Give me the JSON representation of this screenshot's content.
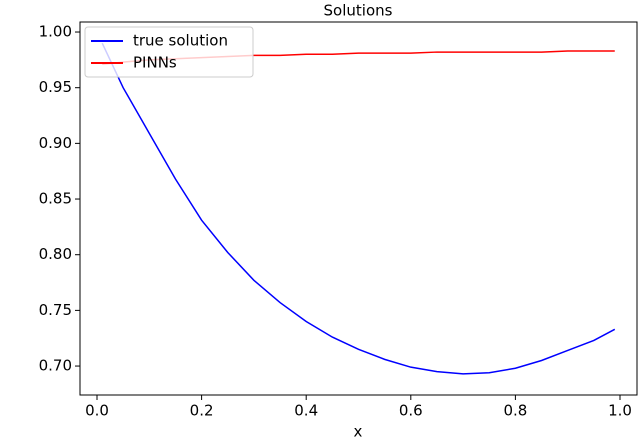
{
  "chart_data": {
    "type": "line",
    "title": "Solutions",
    "x_label": "x",
    "x": [
      0.01,
      0.05,
      0.1,
      0.15,
      0.2,
      0.25,
      0.3,
      0.35,
      0.4,
      0.45,
      0.5,
      0.55,
      0.6,
      0.65,
      0.7,
      0.75,
      0.8,
      0.85,
      0.9,
      0.95,
      0.99
    ],
    "series": [
      {
        "name": "true solution",
        "color": "#0000ff",
        "values": [
          0.99,
          0.95,
          0.909,
          0.868,
          0.831,
          0.802,
          0.777,
          0.757,
          0.74,
          0.726,
          0.715,
          0.706,
          0.699,
          0.695,
          0.693,
          0.694,
          0.698,
          0.705,
          0.714,
          0.723,
          0.733
        ]
      },
      {
        "name": "PINNs",
        "color": "#ff0000",
        "values": [
          0.971,
          0.973,
          0.975,
          0.976,
          0.977,
          0.978,
          0.979,
          0.979,
          0.98,
          0.98,
          0.981,
          0.981,
          0.981,
          0.982,
          0.982,
          0.982,
          0.982,
          0.982,
          0.983,
          0.983,
          0.983
        ]
      }
    ],
    "xlim": [
      -0.0325,
      1.0325
    ],
    "xticks": [
      {
        "value": 0,
        "label": "0.0"
      },
      0.2,
      0.4,
      0.6,
      0.8,
      {
        "value": 1,
        "label": "1.0"
      }
    ],
    "ylim": [
      0.674,
      1.009
    ],
    "yticks": [
      {
        "value": 0.7,
        "label": "0.70"
      },
      0.75,
      {
        "value": 0.8,
        "label": "0.80"
      },
      0.85,
      {
        "value": 0.9,
        "label": "0.90"
      },
      0.95,
      {
        "value": 1,
        "label": "1.00"
      }
    ],
    "legend": "upper left",
    "grid": false
  }
}
